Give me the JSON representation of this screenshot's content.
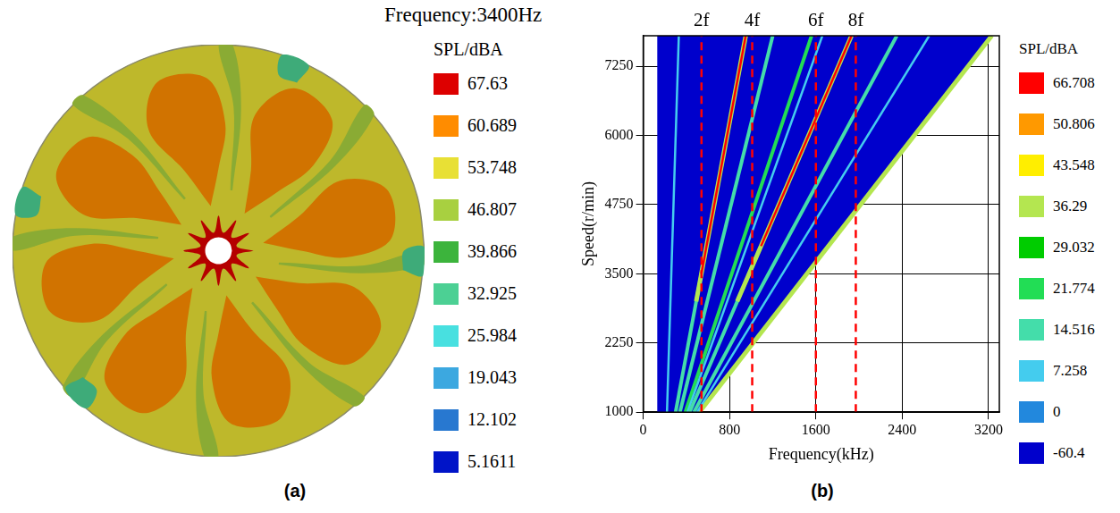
{
  "chart_data": [
    {
      "type": "contour",
      "title": "Frequency:3400Hz",
      "panel_label": "(a)",
      "xlim": [
        -1,
        1
      ],
      "ylim": [
        -1,
        1
      ],
      "tick_labels": false,
      "grid": false,
      "colorbar": {
        "title": "SPL/dBA",
        "ticks": [
          67.63,
          60.689,
          53.748,
          46.807,
          39.866,
          32.925,
          25.984,
          19.043,
          12.102,
          5.1611
        ],
        "colors": [
          "#dd0000",
          "#ff8c00",
          "#e8e035",
          "#a8d040",
          "#3cb43c",
          "#4cd094",
          "#48e0e0",
          "#3ca8e0",
          "#2878d0",
          "#0014c8"
        ]
      },
      "regions": [
        {
          "level": 53.748,
          "r": [
            1,
            1,
            1,
            1,
            1,
            1,
            1,
            1,
            1,
            1,
            1,
            1,
            1,
            1,
            1,
            1,
            1,
            1,
            1,
            1,
            1,
            1,
            1,
            1,
            1
          ],
          "theta": [
            0,
            15,
            30,
            45,
            60,
            75,
            90,
            105,
            120,
            135,
            150,
            165,
            180,
            195,
            210,
            225,
            240,
            255,
            270,
            285,
            300,
            315,
            330,
            345,
            360
          ]
        },
        {
          "level": 60.689,
          "r": [
            0.22,
            0.4,
            0.62,
            0.84,
            0.87,
            0.68,
            0.42,
            0.22
          ],
          "theta": [
            100,
            90,
            87,
            94,
            110,
            120,
            113,
            100
          ]
        },
        {
          "level": 60.689,
          "r": [
            0.22,
            0.4,
            0.62,
            0.84,
            0.87,
            0.68,
            0.42,
            0.22
          ],
          "theta": [
            55,
            45,
            42,
            49,
            65,
            75,
            68,
            55
          ]
        },
        {
          "level": 60.689,
          "r": [
            0.22,
            0.4,
            0.62,
            0.84,
            0.87,
            0.68,
            0.42,
            0.22
          ],
          "theta": [
            10,
            0,
            -3,
            4,
            20,
            30,
            23,
            10
          ]
        },
        {
          "level": 60.689,
          "r": [
            0.22,
            0.4,
            0.62,
            0.84,
            0.87,
            0.68,
            0.42,
            0.22
          ],
          "theta": [
            -35,
            -45,
            -48,
            -41,
            -25,
            -15,
            -22,
            -35
          ]
        },
        {
          "level": 60.689,
          "r": [
            0.22,
            0.4,
            0.62,
            0.84,
            0.87,
            0.68,
            0.42,
            0.22
          ],
          "theta": [
            -80,
            -90,
            -93,
            -86,
            -70,
            -60,
            -67,
            -80
          ]
        },
        {
          "level": 60.689,
          "r": [
            0.22,
            0.4,
            0.62,
            0.84,
            0.87,
            0.68,
            0.42,
            0.22
          ],
          "theta": [
            -125,
            -135,
            -138,
            -131,
            -115,
            -105,
            -112,
            -125
          ]
        },
        {
          "level": 60.689,
          "r": [
            0.22,
            0.4,
            0.62,
            0.84,
            0.87,
            0.68,
            0.42,
            0.22
          ],
          "theta": [
            -170,
            -180,
            -183,
            -176,
            -160,
            -150,
            -157,
            -170
          ]
        },
        {
          "level": 60.689,
          "r": [
            0.22,
            0.4,
            0.62,
            0.84,
            0.87,
            0.68,
            0.42,
            0.22
          ],
          "theta": [
            145,
            135,
            132,
            139,
            155,
            165,
            158,
            145
          ]
        },
        {
          "level": 46.807,
          "r": [
            0.3,
            0.7,
            1,
            1,
            0.7,
            0.3,
            0.3
          ],
          "theta": [
            122,
            126,
            131,
            135,
            129,
            124,
            122
          ]
        },
        {
          "level": 46.807,
          "r": [
            0.3,
            0.7,
            1,
            1,
            0.7,
            0.3,
            0.3
          ],
          "theta": [
            77,
            81,
            86,
            90,
            84,
            79,
            77
          ]
        },
        {
          "level": 46.807,
          "r": [
            0.3,
            0.7,
            1,
            1,
            0.7,
            0.3,
            0.3
          ],
          "theta": [
            32,
            36,
            41,
            45,
            39,
            34,
            32
          ]
        },
        {
          "level": 46.807,
          "r": [
            0.3,
            0.7,
            1,
            1,
            0.7,
            0.3,
            0.3
          ],
          "theta": [
            -13,
            -9,
            -4,
            0,
            -6,
            -11,
            -13
          ]
        },
        {
          "level": 46.807,
          "r": [
            0.3,
            0.7,
            1,
            1,
            0.7,
            0.3,
            0.3
          ],
          "theta": [
            -58,
            -54,
            -49,
            -45,
            -51,
            -56,
            -58
          ]
        },
        {
          "level": 46.807,
          "r": [
            0.3,
            0.7,
            1,
            1,
            0.7,
            0.3,
            0.3
          ],
          "theta": [
            -103,
            -99,
            -94,
            -90,
            -96,
            -101,
            -103
          ]
        },
        {
          "level": 46.807,
          "r": [
            0.3,
            0.7,
            1,
            1,
            0.7,
            0.3,
            0.3
          ],
          "theta": [
            -148,
            -144,
            -139,
            -135,
            -141,
            -146,
            -148
          ]
        },
        {
          "level": 46.807,
          "r": [
            0.3,
            0.7,
            1,
            1,
            0.7,
            0.3,
            0.3
          ],
          "theta": [
            167,
            171,
            176,
            180,
            174,
            169,
            167
          ]
        },
        {
          "level": 32.925,
          "r": [
            0.9,
            1,
            1,
            0.9,
            0.9
          ],
          "theta": [
            65,
            64,
            72,
            71,
            65
          ]
        },
        {
          "level": 32.925,
          "r": [
            0.9,
            1,
            1,
            0.9,
            0.9
          ],
          "theta": [
            163,
            162,
            170,
            169,
            163
          ]
        },
        {
          "level": 32.925,
          "r": [
            0.9,
            1,
            1,
            0.9,
            0.9
          ],
          "theta": [
            -137,
            -138,
            -130,
            -131,
            -137
          ]
        },
        {
          "level": 32.925,
          "r": [
            0.9,
            1,
            1,
            0.9,
            0.9
          ],
          "theta": [
            -6,
            -7,
            1,
            0,
            -6
          ]
        },
        {
          "level": 67.63,
          "r": [
            0.17,
            0.09,
            0.17,
            0.09,
            0.17,
            0.09,
            0.17,
            0.09,
            0.17,
            0.09,
            0.17,
            0.09,
            0.17,
            0.09,
            0.17,
            0.09,
            0.17,
            0.09,
            0.17,
            0.09,
            0.17,
            0.09,
            0.17,
            0.09,
            0.17
          ],
          "theta": [
            0,
            15,
            30,
            45,
            60,
            75,
            90,
            105,
            120,
            135,
            150,
            165,
            180,
            195,
            210,
            225,
            240,
            255,
            270,
            285,
            300,
            315,
            330,
            345,
            360
          ]
        },
        {
          "color": "#ffffff",
          "r": [
            0.065,
            0.065,
            0.065,
            0.065,
            0.065,
            0.065,
            0.065,
            0.065,
            0.065,
            0.065,
            0.065,
            0.065,
            0.065
          ],
          "theta": [
            0,
            30,
            60,
            90,
            120,
            150,
            180,
            210,
            240,
            270,
            300,
            330,
            360
          ]
        }
      ]
    },
    {
      "type": "line",
      "panel_label": "(b)",
      "x_label": "Frequency(kHz)",
      "y_label": "Speed(r/min)",
      "xlim": [
        0,
        3300
      ],
      "xticks": [
        0,
        800,
        1600,
        2400,
        3200
      ],
      "ylim": [
        1000,
        7800
      ],
      "yticks": [
        1000,
        2250,
        3500,
        4750,
        6000,
        7250
      ],
      "grid": true,
      "colorbar": {
        "title": "SPL/dBA",
        "ticks": [
          66.708,
          50.806,
          43.548,
          36.29,
          29.032,
          21.774,
          14.516,
          7.258,
          0,
          -60.4
        ],
        "colors": [
          "#ff0000",
          "#ff9900",
          "#ffee00",
          "#b4e650",
          "#00cc00",
          "#22dd55",
          "#44ddaa",
          "#44ccee",
          "#2288dd",
          "#0000cc"
        ]
      },
      "series": [
        {
          "type": "area",
          "level": -60.4,
          "x": [
            130,
            130,
            3230,
            520,
            130
          ],
          "values": [
            1000,
            7800,
            7800,
            1000,
            1000
          ]
        },
        {
          "level": 36.29,
          "x": [
            520,
            3230
          ],
          "values": [
            1000,
            7800
          ]
        },
        {
          "level": 7.258,
          "x": [
            220,
            330
          ],
          "values": [
            1000,
            7800
          ]
        },
        {
          "level": 14.516,
          "x": [
            300,
            950
          ],
          "values": [
            1000,
            7800
          ]
        },
        {
          "level": 36.29,
          "x": [
            491,
            950
          ],
          "values": [
            3000,
            7800
          ]
        },
        {
          "level": 66.708,
          "x": [
            539,
            950
          ],
          "values": [
            3500,
            7800
          ]
        },
        {
          "level": 14.516,
          "x": [
            340,
            1200
          ],
          "values": [
            1000,
            7800
          ]
        },
        {
          "level": 21.774,
          "x": [
            390,
            1560
          ],
          "values": [
            1000,
            7800
          ]
        },
        {
          "level": 7.258,
          "x": [
            410,
            1660
          ],
          "values": [
            1000,
            7800
          ]
        },
        {
          "level": 14.516,
          "x": [
            430,
            1930
          ],
          "values": [
            1000,
            7800
          ]
        },
        {
          "level": 36.29,
          "x": [
            871,
            1930
          ],
          "values": [
            3000,
            7800
          ]
        },
        {
          "level": 66.708,
          "x": [
            1092,
            1930
          ],
          "values": [
            4000,
            7800
          ]
        },
        {
          "level": 14.516,
          "x": [
            470,
            2350
          ],
          "values": [
            1000,
            7800
          ]
        },
        {
          "level": 7.258,
          "x": [
            500,
            2650
          ],
          "values": [
            1000,
            7800
          ]
        }
      ],
      "annotations": [
        {
          "label": "2f",
          "x": 540,
          "color": "#ff0000",
          "line_style": "dashed"
        },
        {
          "label": "4f",
          "x": 1010,
          "color": "#ff0000",
          "line_style": "dashed"
        },
        {
          "label": "6f",
          "x": 1600,
          "color": "#ff0000",
          "line_style": "dashed"
        },
        {
          "label": "8f",
          "x": 1970,
          "color": "#ff0000",
          "line_style": "dashed"
        }
      ]
    }
  ]
}
